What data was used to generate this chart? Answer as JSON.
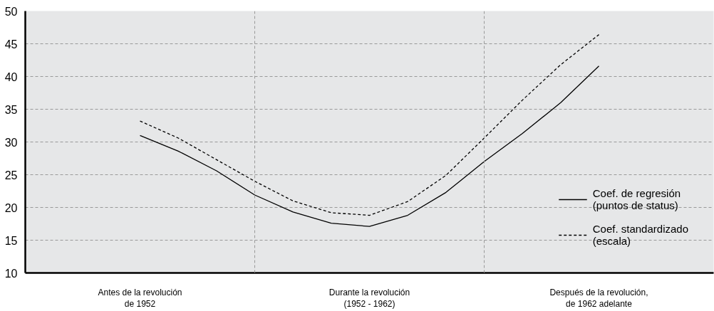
{
  "chart_data": {
    "type": "line",
    "categories": [
      "Antes de la revolución\nde 1952",
      null,
      null,
      null,
      null,
      null,
      "Durante la revolución\n(1952 - 1962)",
      null,
      null,
      null,
      null,
      null,
      "Después de la revolución,\nde 1962 adelante"
    ],
    "ylim": [
      10,
      50
    ],
    "yticks": [
      10,
      15,
      20,
      25,
      30,
      35,
      40,
      45,
      50
    ],
    "grid": "y",
    "legend": "bottom right",
    "series": [
      {
        "name": "Coef. de regresión\n(puntos de status)",
        "color": "#000000",
        "line_style": "solid",
        "values": [
          31.0,
          28.6,
          25.6,
          21.9,
          19.3,
          17.6,
          17.1,
          18.8,
          22.3,
          27.0,
          31.3,
          36.0,
          41.6
        ]
      },
      {
        "name": "Coef. standardizado\n(escala)",
        "color": "#000000",
        "line_style": "dashed",
        "values": [
          33.2,
          30.6,
          27.3,
          24.0,
          21.0,
          19.2,
          18.8,
          20.9,
          24.9,
          30.6,
          36.4,
          41.8,
          46.4
        ]
      }
    ]
  }
}
